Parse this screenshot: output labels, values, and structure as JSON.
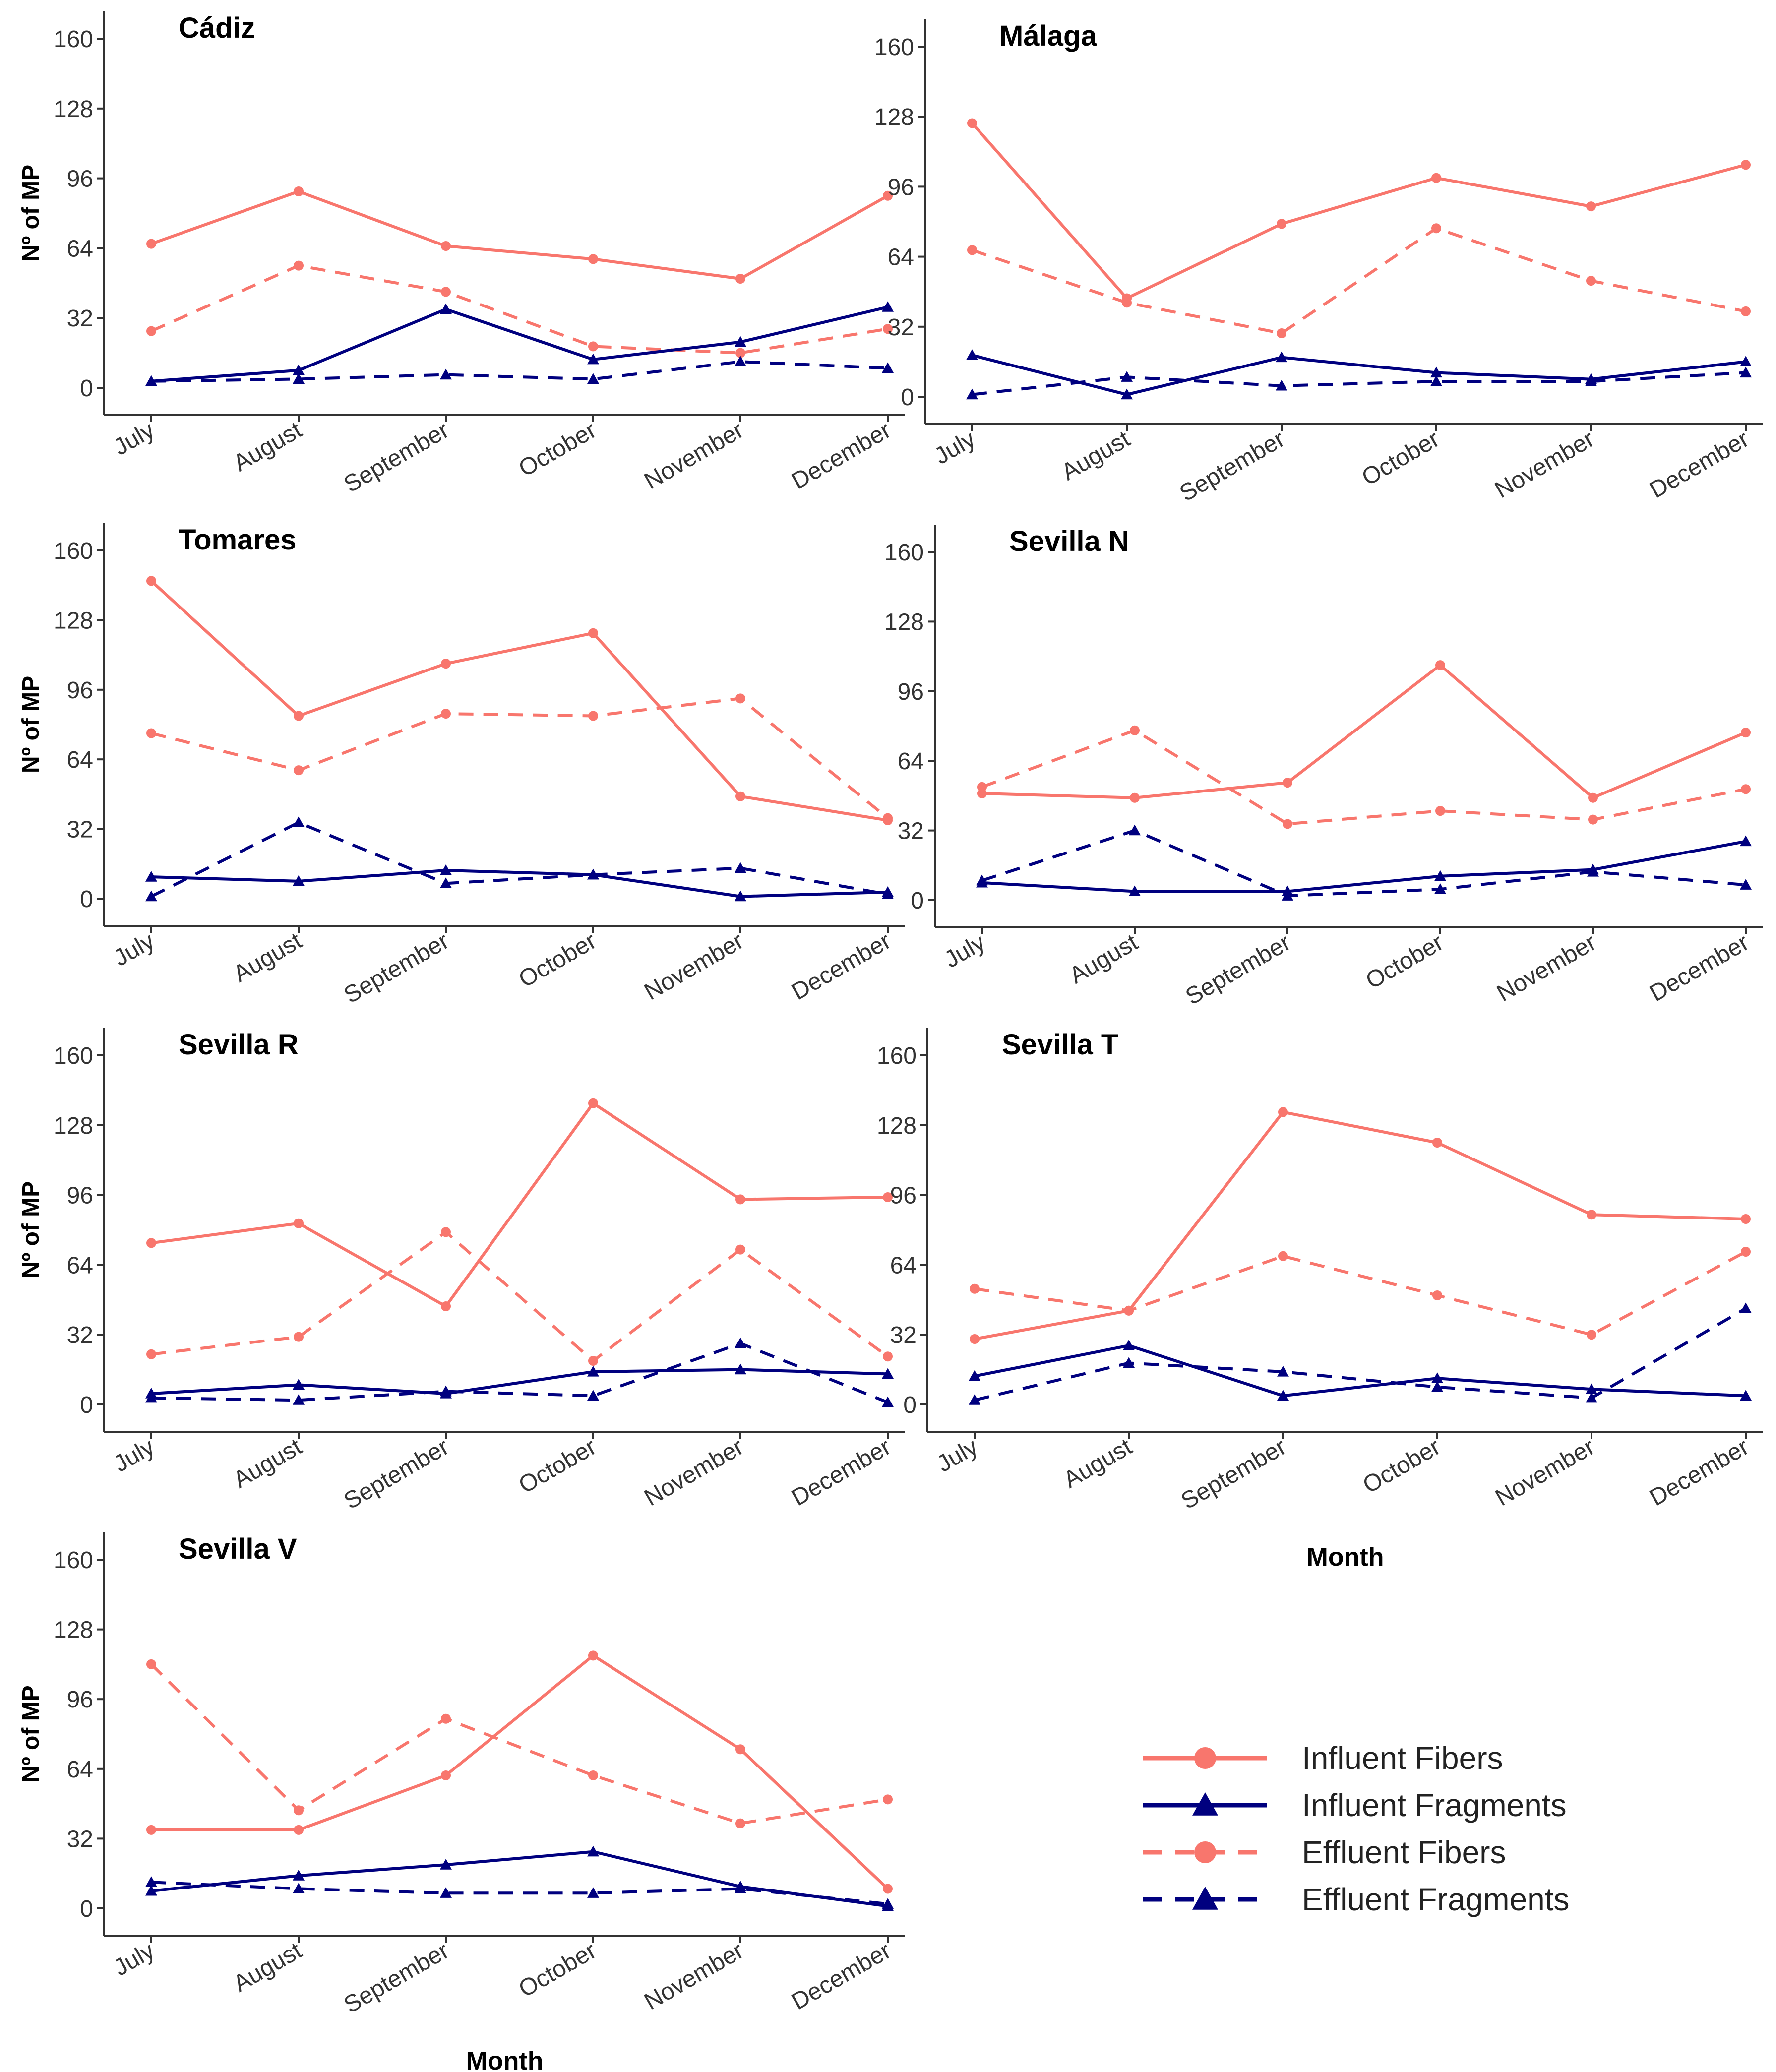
{
  "chart_data": [
    {
      "type": "line",
      "title": "Cádiz",
      "xlabel": "",
      "ylabel": "Nº of MP",
      "ylim": [
        0,
        160
      ],
      "yticks": [
        "0",
        "32",
        "64",
        "96",
        "128",
        "160"
      ],
      "categories": [
        "July",
        "August",
        "September",
        "October",
        "November",
        "December"
      ],
      "series": [
        {
          "name": "Influent Fibers",
          "values": [
            66,
            90,
            65,
            59,
            50,
            88
          ]
        },
        {
          "name": "Influent Fragments",
          "values": [
            3,
            8,
            36,
            13,
            21,
            37
          ]
        },
        {
          "name": "Effluent Fibers",
          "values": [
            26,
            56,
            44,
            19,
            16,
            27
          ]
        },
        {
          "name": "Effluent Fragments",
          "values": [
            3,
            4,
            6,
            4,
            12,
            9
          ]
        }
      ]
    },
    {
      "type": "line",
      "title": "Málaga",
      "xlabel": "",
      "ylabel": "",
      "ylim": [
        0,
        160
      ],
      "yticks": [
        "0",
        "32",
        "64",
        "96",
        "128",
        "160"
      ],
      "categories": [
        "July",
        "August",
        "September",
        "October",
        "November",
        "December"
      ],
      "series": [
        {
          "name": "Influent Fibers",
          "values": [
            125,
            45,
            79,
            100,
            87,
            106
          ]
        },
        {
          "name": "Influent Fragments",
          "values": [
            19,
            1,
            18,
            11,
            8,
            16
          ]
        },
        {
          "name": "Effluent Fibers",
          "values": [
            67,
            43,
            29,
            77,
            53,
            39
          ]
        },
        {
          "name": "Effluent Fragments",
          "values": [
            1,
            9,
            5,
            7,
            7,
            11
          ]
        }
      ]
    },
    {
      "type": "line",
      "title": "Tomares",
      "xlabel": "",
      "ylabel": "Nº of MP",
      "ylim": [
        0,
        160
      ],
      "yticks": [
        "0",
        "32",
        "64",
        "96",
        "128",
        "160"
      ],
      "categories": [
        "July",
        "August",
        "September",
        "October",
        "November",
        "December"
      ],
      "series": [
        {
          "name": "Influent Fibers",
          "values": [
            146,
            84,
            108,
            122,
            47,
            36
          ]
        },
        {
          "name": "Influent Fragments",
          "values": [
            10,
            8,
            13,
            11,
            1,
            3
          ]
        },
        {
          "name": "Effluent Fibers",
          "values": [
            76,
            59,
            85,
            84,
            92,
            37
          ]
        },
        {
          "name": "Effluent Fragments",
          "values": [
            1,
            35,
            7,
            11,
            14,
            2
          ]
        }
      ]
    },
    {
      "type": "line",
      "title": "Sevilla N",
      "xlabel": "",
      "ylabel": "",
      "ylim": [
        0,
        160
      ],
      "yticks": [
        "0",
        "32",
        "64",
        "96",
        "128",
        "160"
      ],
      "categories": [
        "July",
        "August",
        "September",
        "October",
        "November",
        "December"
      ],
      "series": [
        {
          "name": "Influent Fibers",
          "values": [
            49,
            47,
            54,
            108,
            47,
            77
          ]
        },
        {
          "name": "Influent Fragments",
          "values": [
            8,
            4,
            4,
            11,
            14,
            27
          ]
        },
        {
          "name": "Effluent Fibers",
          "values": [
            52,
            78,
            35,
            41,
            37,
            51
          ]
        },
        {
          "name": "Effluent Fragments",
          "values": [
            9,
            32,
            2,
            5,
            13,
            7
          ]
        }
      ]
    },
    {
      "type": "line",
      "title": "Sevilla R",
      "xlabel": "",
      "ylabel": "Nº of MP",
      "ylim": [
        0,
        160
      ],
      "yticks": [
        "0",
        "32",
        "64",
        "96",
        "128",
        "160"
      ],
      "categories": [
        "July",
        "August",
        "September",
        "October",
        "November",
        "December"
      ],
      "series": [
        {
          "name": "Influent Fibers",
          "values": [
            74,
            83,
            45,
            138,
            94,
            95
          ]
        },
        {
          "name": "Influent Fragments",
          "values": [
            5,
            9,
            5,
            15,
            16,
            14
          ]
        },
        {
          "name": "Effluent Fibers",
          "values": [
            23,
            31,
            79,
            20,
            71,
            22
          ]
        },
        {
          "name": "Effluent Fragments",
          "values": [
            3,
            2,
            6,
            4,
            28,
            1
          ]
        }
      ]
    },
    {
      "type": "line",
      "title": "Sevilla T",
      "xlabel": "Month",
      "ylabel": "",
      "ylim": [
        0,
        160
      ],
      "yticks": [
        "0",
        "32",
        "64",
        "96",
        "128",
        "160"
      ],
      "categories": [
        "July",
        "August",
        "September",
        "October",
        "November",
        "December"
      ],
      "series": [
        {
          "name": "Influent Fibers",
          "values": [
            30,
            43,
            134,
            120,
            87,
            85
          ]
        },
        {
          "name": "Influent Fragments",
          "values": [
            13,
            27,
            4,
            12,
            7,
            4
          ]
        },
        {
          "name": "Effluent Fibers",
          "values": [
            53,
            43,
            68,
            50,
            32,
            70
          ]
        },
        {
          "name": "Effluent Fragments",
          "values": [
            2,
            19,
            15,
            8,
            3,
            44
          ]
        }
      ]
    },
    {
      "type": "line",
      "title": "Sevilla V",
      "xlabel": "Month",
      "ylabel": "Nº of MP",
      "ylim": [
        0,
        160
      ],
      "yticks": [
        "0",
        "32",
        "64",
        "96",
        "128",
        "160"
      ],
      "categories": [
        "July",
        "August",
        "September",
        "October",
        "November",
        "December"
      ],
      "series": [
        {
          "name": "Influent Fibers",
          "values": [
            36,
            36,
            61,
            116,
            73,
            9
          ]
        },
        {
          "name": "Influent Fragments",
          "values": [
            8,
            15,
            20,
            26,
            10,
            1
          ]
        },
        {
          "name": "Effluent Fibers",
          "values": [
            112,
            45,
            87,
            61,
            39,
            50
          ]
        },
        {
          "name": "Effluent Fragments",
          "values": [
            12,
            9,
            7,
            7,
            9,
            2
          ]
        }
      ]
    }
  ],
  "legend": {
    "position": "bottom-right",
    "items": [
      {
        "label": "Influent Fibers",
        "color": "#F8766D",
        "line": "solid",
        "marker": "circle"
      },
      {
        "label": "Influent Fragments",
        "color": "#00007F",
        "line": "solid",
        "marker": "triangle"
      },
      {
        "label": "Effluent Fibers",
        "color": "#F8766D",
        "line": "dashed",
        "marker": "circle"
      },
      {
        "label": "Effluent Fragments",
        "color": "#00007F",
        "line": "dashed",
        "marker": "triangle"
      }
    ]
  },
  "colors": {
    "fibers": "#F8766D",
    "fragments": "#00007F",
    "axis": "#333333"
  }
}
